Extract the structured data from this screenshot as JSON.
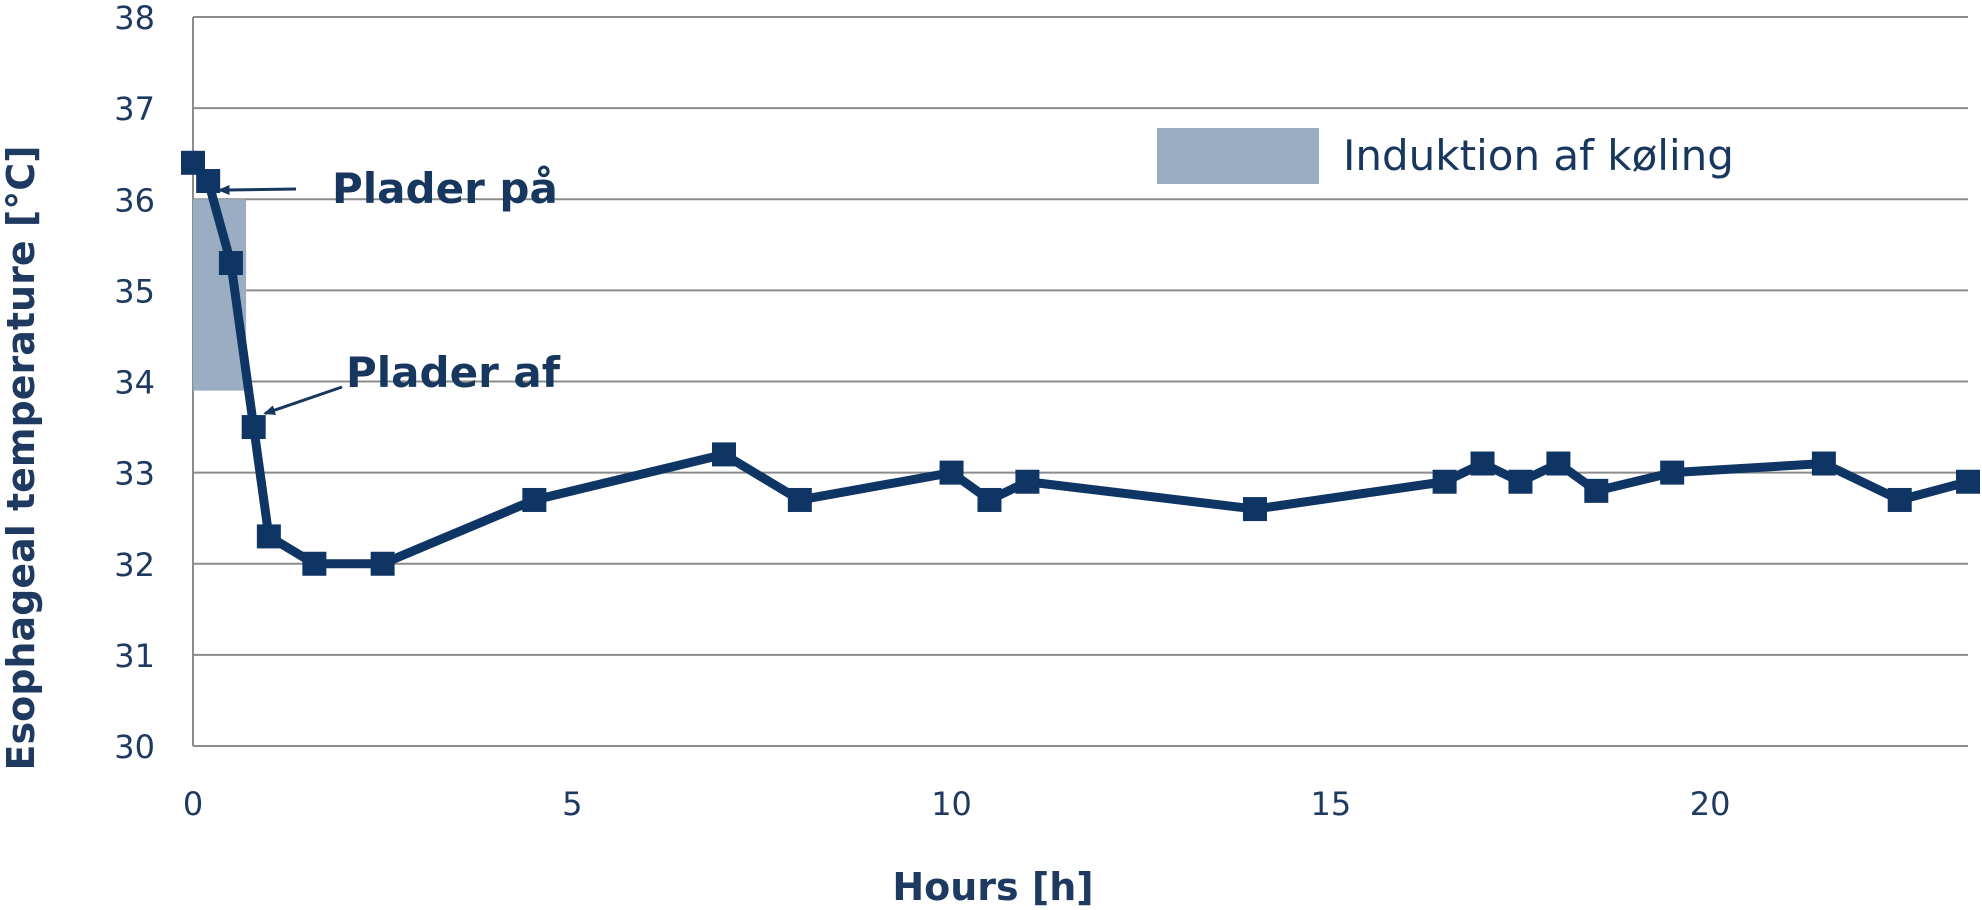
{
  "chart_data": {
    "type": "line",
    "title": "",
    "xlabel": "Hours [h]",
    "ylabel": "Esophageal temperature [°C]",
    "xlim": [
      0,
      23.4
    ],
    "ylim": [
      30,
      38
    ],
    "x_ticks": [
      0,
      5,
      10,
      15,
      20
    ],
    "y_ticks": [
      30,
      31,
      32,
      33,
      34,
      35,
      36,
      37,
      38
    ],
    "grid": "horizontal",
    "series": [
      {
        "x": [
          0,
          0.2,
          0.5,
          0.8,
          1.0,
          1.6,
          2.5,
          4.5,
          7.0,
          8.0,
          10.0,
          10.5,
          11.0,
          14.0,
          16.5,
          17.0,
          17.5,
          18.0,
          18.5,
          19.5,
          21.5,
          22.5,
          23.4
        ],
        "values": [
          36.4,
          36.2,
          35.3,
          33.5,
          32.3,
          32.0,
          32.0,
          32.7,
          33.2,
          32.7,
          33.0,
          32.7,
          32.9,
          32.6,
          32.9,
          33.1,
          32.9,
          33.1,
          32.8,
          33.0,
          33.1,
          32.7,
          32.9
        ],
        "color": "#0f3565"
      }
    ],
    "shaded_region": {
      "x": [
        0,
        0.7
      ],
      "y": [
        33.9,
        36.0
      ],
      "label": "Induktion af køling",
      "color": "#9aadc2"
    },
    "annotations": [
      {
        "text": "Plader på",
        "points_to": {
          "x": 0.35,
          "y": 36.1
        }
      },
      {
        "text": "Plader af",
        "points_to": {
          "x": 0.95,
          "y": 33.65
        }
      }
    ],
    "legend": {
      "position": "top-right",
      "entries": [
        "Induktion af køling"
      ]
    }
  }
}
